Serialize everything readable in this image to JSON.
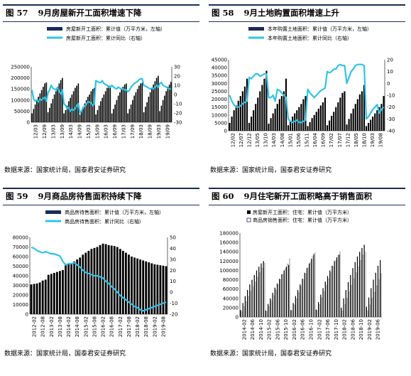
{
  "source_text": "数据来源：国家统计局，国泰君安证券研究",
  "colors": {
    "bar": "#000000",
    "line": "#2ec3ea",
    "rule": "#1a2c5a",
    "hatch_border": "#1a2c5a"
  },
  "panels": [
    {
      "fig": "图 57",
      "title": "9月房屋新开工面积增速下降",
      "chart_data": {
        "type": "bar",
        "legend": [
          "房屋新开工面积：累计值（万平方米，左轴）",
          "房屋新开工面积：累计同比（右轴）"
        ],
        "y_ticks": [
          "250000",
          "200000",
          "150000",
          "100000",
          "50000",
          "0"
        ],
        "y_range": [
          0,
          250000
        ],
        "y2_ticks": [
          "30",
          "20",
          "10",
          "0",
          "-10",
          "-20",
          "-30"
        ],
        "y2_range": [
          -30,
          30
        ],
        "x_ticks": [
          "12/03",
          "12/09",
          "13/03",
          "13/09",
          "14/03",
          "14/09",
          "15/03",
          "15/09",
          "16/03",
          "16/09",
          "17/03",
          "17/09",
          "18/03",
          "18/09",
          "19/03",
          "19/09"
        ],
        "bars": [
          40000,
          60000,
          80000,
          100000,
          115000,
          130000,
          145000,
          160000,
          175000,
          180000,
          45000,
          65000,
          85000,
          105000,
          125000,
          140000,
          160000,
          175000,
          190000,
          200000,
          40000,
          55000,
          75000,
          95000,
          110000,
          125000,
          140000,
          155000,
          165000,
          175000,
          35000,
          50000,
          70000,
          85000,
          100000,
          115000,
          125000,
          140000,
          150000,
          155000,
          35000,
          55000,
          75000,
          95000,
          110000,
          125000,
          140000,
          155000,
          165000,
          165000,
          40000,
          60000,
          80000,
          100000,
          120000,
          135000,
          150000,
          160000,
          170000,
          175000,
          40000,
          60000,
          80000,
          100000,
          120000,
          135000,
          150000,
          165000,
          175000,
          178000,
          45000,
          70000,
          90000,
          115000,
          135000,
          150000,
          170000,
          185000,
          200000,
          210000,
          50000,
          75000,
          100000,
          120000,
          140000,
          160000,
          170000,
          182000
        ],
        "line": [
          5,
          -5,
          -7,
          -6,
          -8,
          -5,
          -6,
          -4,
          -3,
          -7,
          2,
          5,
          10,
          7,
          6,
          5,
          8,
          3,
          1,
          5,
          -10,
          -12,
          -15,
          -14,
          -18,
          -16,
          -17,
          -15,
          -12,
          -10,
          -20,
          -18,
          -14,
          -13,
          -10,
          -8,
          -8,
          -9,
          -12,
          -10,
          15,
          14,
          13,
          13,
          15,
          12,
          11,
          10,
          8,
          8,
          10,
          8,
          7,
          6,
          8,
          7,
          6,
          6,
          5,
          5,
          3,
          5,
          8,
          10,
          12,
          13,
          14,
          16,
          17,
          17,
          10,
          9,
          8,
          7,
          6,
          7,
          6,
          8,
          10,
          8,
          12,
          13,
          10,
          9,
          8,
          7,
          6,
          6
        ]
      }
    },
    {
      "fig": "图 58",
      "title": "9月土地购置面积增速上升",
      "chart_data": {
        "type": "bar",
        "legend": [
          "本年购置土地面积：累计值（万平方米，左轴）",
          "本年购置土地面积：累计同比（右轴）"
        ],
        "y_ticks": [
          "45000",
          "40000",
          "35000",
          "30000",
          "25000",
          "20000",
          "15000",
          "10000",
          "5000",
          "0"
        ],
        "y_range": [
          0,
          45000
        ],
        "y2_ticks": [
          "20",
          "10",
          "0",
          "-10",
          "-20",
          "-30",
          "-40"
        ],
        "y2_range": [
          -40,
          20
        ],
        "x_ticks": [
          "12/02",
          "12/07",
          "12/12",
          "13/05",
          "13/10",
          "14/03",
          "14/08",
          "15/01",
          "15/06",
          "15/11",
          "16/04",
          "16/09",
          "17/02",
          "17/07",
          "17/12",
          "18/05",
          "18/10",
          "19/03",
          "19/08"
        ],
        "bars": [
          5000,
          9000,
          13000,
          16000,
          19000,
          22000,
          25000,
          28000,
          33000,
          5000,
          9000,
          13000,
          17000,
          21000,
          25000,
          29000,
          33000,
          38000,
          4500,
          8000,
          11000,
          14000,
          17000,
          20000,
          22000,
          25000,
          33000,
          3500,
          6000,
          9000,
          11000,
          13000,
          15000,
          17000,
          20000,
          22000,
          3000,
          5500,
          8000,
          10000,
          12000,
          14000,
          16000,
          18000,
          21000,
          3500,
          6500,
          9500,
          12000,
          15000,
          18000,
          21000,
          24000,
          25000,
          4000,
          7500,
          11000,
          14000,
          17000,
          20000,
          23000,
          25000,
          29000,
          3000,
          5000,
          7000,
          9000,
          11000,
          13000,
          15000,
          17000,
          22000
        ],
        "line": [
          -10,
          -15,
          -18,
          -20,
          -20,
          -19,
          -17,
          -16,
          -15,
          5,
          4,
          6,
          8,
          8,
          6,
          7,
          8,
          8,
          -12,
          -12,
          -10,
          -15,
          -5,
          -6,
          -8,
          -10,
          -12,
          -30,
          -32,
          -33,
          -32,
          -31,
          -33,
          -33,
          -32,
          -31,
          -5,
          -8,
          -10,
          -12,
          -10,
          -8,
          -6,
          -5,
          -4,
          10,
          9,
          10,
          12,
          12,
          15,
          16,
          15,
          15,
          0,
          5,
          10,
          12,
          15,
          16,
          16,
          16,
          15,
          -30,
          -28,
          -25,
          -22,
          -20,
          -18,
          -25,
          -22,
          -20
        ]
      }
    },
    {
      "fig": "图 59",
      "title": "9月商品房待售面积持续下降",
      "chart_data": {
        "type": "bar",
        "legend": [
          "商品房待售面积：累计值（万平方米，左轴）",
          "商品房待售面积：累计同比（右轴）"
        ],
        "y_ticks": [
          "80000",
          "70000",
          "60000",
          "50000",
          "40000",
          "30000",
          "20000",
          "10000",
          "0"
        ],
        "y_range": [
          0,
          80000
        ],
        "y2_ticks": [
          "50",
          "40",
          "30",
          "20",
          "10",
          "0",
          "-10",
          "-20"
        ],
        "y2_range": [
          -20,
          50
        ],
        "x_ticks": [
          "2012-02",
          "2012-08",
          "2013-02",
          "2013-08",
          "2014-02",
          "2014-08",
          "2015-02",
          "2015-08",
          "2016-02",
          "2016-08",
          "2017-02",
          "2017-08",
          "2018-02",
          "2018-08",
          "2019-02",
          "2019-08"
        ],
        "bars": [
          31000,
          31500,
          32000,
          33000,
          35000,
          36000,
          41000,
          42000,
          43000,
          44000,
          45000,
          46000,
          51000,
          52000,
          53000,
          55000,
          57000,
          59000,
          62000,
          64000,
          66000,
          68000,
          69000,
          70000,
          72000,
          73500,
          73000,
          72000,
          71500,
          71000,
          70000,
          68000,
          66000,
          64000,
          62000,
          60000,
          59000,
          58000,
          57000,
          56000,
          55000,
          54000,
          53000,
          52000,
          51500,
          51000,
          50500,
          50000
        ],
        "line": [
          41,
          40,
          38,
          37,
          36,
          37,
          36,
          35,
          35,
          34,
          33,
          28,
          25,
          26,
          26,
          27,
          25,
          23,
          20,
          18,
          17,
          16,
          15,
          15,
          14,
          13,
          10,
          8,
          5,
          3,
          0,
          -3,
          -5,
          -7,
          -9,
          -11,
          -13,
          -14,
          -16,
          -17,
          -16,
          -15,
          -14,
          -13,
          -12,
          -11,
          -10,
          -9
        ]
      }
    },
    {
      "fig": "图 60",
      "title": "9月住宅新开工面积略高于销售面积",
      "chart_data": {
        "type": "bar",
        "legend": [
          "房屋新开工面积：住宅：累计值（万平方米）",
          "商品房销售面积：住宅：累计值（万平方米）"
        ],
        "y_ticks": [
          "180000",
          "160000",
          "140000",
          "120000",
          "100000",
          "80000",
          "60000",
          "40000",
          "20000",
          "0"
        ],
        "y_range": [
          0,
          180000
        ],
        "x_ticks": [
          "2014-02",
          "2014-06",
          "2014-10",
          "2015-02",
          "2015-06",
          "2015-10",
          "2016-02",
          "2016-06",
          "2016-10",
          "2017-02",
          "2017-06",
          "2017-10",
          "2018-02",
          "2018-06",
          "2018-10",
          "2019-02",
          "2019-06"
        ],
        "bars": [
          [
            15000,
            11000
          ],
          [
            30000,
            22000
          ],
          [
            45000,
            33000
          ],
          [
            58000,
            44000
          ],
          [
            70000,
            55000
          ],
          [
            80000,
            65000
          ],
          [
            90000,
            75000
          ],
          [
            100000,
            85000
          ],
          [
            108000,
            95000
          ],
          [
            115000,
            105000
          ],
          [
            120000,
            115000
          ],
          [
            14000,
            12000
          ],
          [
            28000,
            23000
          ],
          [
            40000,
            34000
          ],
          [
            52000,
            46000
          ],
          [
            63000,
            58000
          ],
          [
            72000,
            69000
          ],
          [
            82000,
            80000
          ],
          [
            92000,
            92000
          ],
          [
            100000,
            104000
          ],
          [
            108000,
            114000
          ],
          [
            112000,
            125000
          ],
          [
            15000,
            13000
          ],
          [
            30000,
            26000
          ],
          [
            45000,
            39000
          ],
          [
            58000,
            52000
          ],
          [
            70000,
            66000
          ],
          [
            82000,
            80000
          ],
          [
            95000,
            93000
          ],
          [
            105000,
            106000
          ],
          [
            115000,
            118000
          ],
          [
            125000,
            130000
          ],
          [
            135000,
            138000
          ],
          [
            16000,
            14000
          ],
          [
            32000,
            27000
          ],
          [
            48000,
            41000
          ],
          [
            62000,
            54000
          ],
          [
            76000,
            68000
          ],
          [
            88000,
            82000
          ],
          [
            100000,
            95000
          ],
          [
            110000,
            108000
          ],
          [
            120000,
            121000
          ],
          [
            128000,
            132000
          ],
          [
            134000,
            140000
          ],
          [
            20000,
            13000
          ],
          [
            40000,
            27000
          ],
          [
            58000,
            40000
          ],
          [
            75000,
            54000
          ],
          [
            90000,
            68000
          ],
          [
            105000,
            82000
          ],
          [
            118000,
            95000
          ],
          [
            130000,
            108000
          ],
          [
            140000,
            121000
          ],
          [
            148000,
            133000
          ],
          [
            155000,
            140000
          ],
          [
            22000,
            13000
          ],
          [
            42000,
            26000
          ],
          [
            62000,
            40000
          ],
          [
            80000,
            53000
          ],
          [
            95000,
            67000
          ],
          [
            110000,
            80000
          ],
          [
            122000,
            93000
          ]
        ]
      }
    }
  ]
}
